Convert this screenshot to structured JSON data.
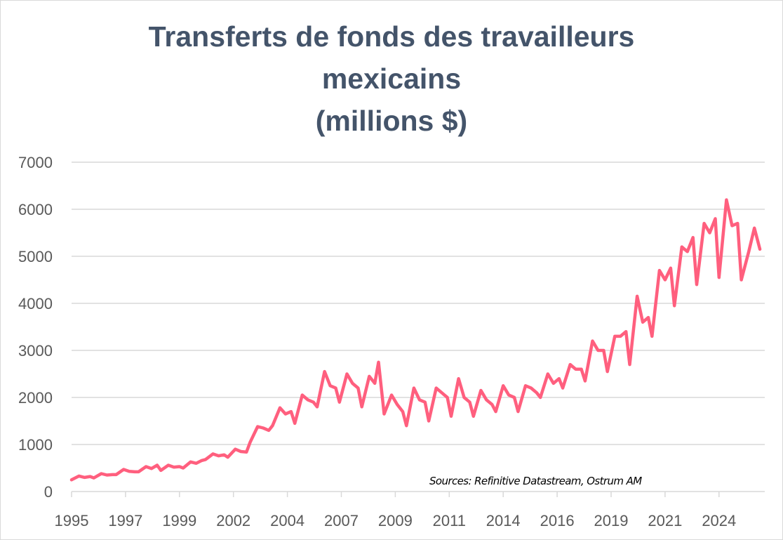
{
  "chart_data": {
    "type": "line",
    "title_lines": [
      "Transferts de fonds des travailleurs",
      "mexicains",
      "(millions $)"
    ],
    "xlabel": "",
    "ylabel": "",
    "ylim": [
      0,
      7000
    ],
    "yticks": [
      0,
      1000,
      2000,
      3000,
      4000,
      5000,
      6000,
      7000
    ],
    "xticks": [
      "1995",
      "1997",
      "1999",
      "2002",
      "2004",
      "2007",
      "2009",
      "2011",
      "2014",
      "2016",
      "2019",
      "2021",
      "2024"
    ],
    "grid": true,
    "legend": "none",
    "line_color": "#FF5F7E",
    "annotation": "Sources: Refinitive Datastream, Ostrum AM",
    "series": [
      {
        "x": [
          "1995-01",
          "1995-05",
          "1995-08",
          "1995-11",
          "1996-01",
          "1996-05",
          "1996-08",
          "1996-11",
          "1997-01",
          "1997-05",
          "1997-08",
          "1997-11",
          "1998-01",
          "1998-05",
          "1998-08",
          "1998-11",
          "1999-01",
          "1999-05",
          "1999-08",
          "1999-11",
          "2000-01",
          "2000-05",
          "2000-08",
          "2000-11",
          "2001-01",
          "2001-05",
          "2001-08",
          "2001-11",
          "2002-01",
          "2002-05",
          "2002-08",
          "2002-11",
          "2003-01",
          "2003-05",
          "2003-08",
          "2003-11",
          "2004-01",
          "2004-05",
          "2004-08",
          "2004-11",
          "2005-01",
          "2005-05",
          "2005-08",
          "2005-11",
          "2006-01",
          "2006-05",
          "2006-08",
          "2006-11",
          "2007-01",
          "2007-05",
          "2007-08",
          "2007-11",
          "2008-01",
          "2008-05",
          "2008-08",
          "2008-10",
          "2009-01",
          "2009-05",
          "2009-08",
          "2009-11",
          "2010-01",
          "2010-05",
          "2010-08",
          "2010-11",
          "2011-01",
          "2011-05",
          "2011-08",
          "2011-11",
          "2012-01",
          "2012-05",
          "2012-08",
          "2012-11",
          "2013-01",
          "2013-05",
          "2013-08",
          "2013-11",
          "2014-01",
          "2014-05",
          "2014-08",
          "2014-11",
          "2015-01",
          "2015-05",
          "2015-08",
          "2015-11",
          "2016-01",
          "2016-05",
          "2016-08",
          "2016-11",
          "2017-01",
          "2017-05",
          "2017-08",
          "2017-11",
          "2018-01",
          "2018-05",
          "2018-08",
          "2018-11",
          "2019-01",
          "2019-05",
          "2019-08",
          "2019-11",
          "2020-01",
          "2020-05",
          "2020-08",
          "2020-11",
          "2021-01",
          "2021-05",
          "2021-08",
          "2021-11",
          "2022-01",
          "2022-05",
          "2022-08",
          "2022-11",
          "2023-01",
          "2023-05",
          "2023-08",
          "2023-11",
          "2024-01",
          "2024-05",
          "2024-08",
          "2024-11",
          "2025-01",
          "2025-05",
          "2025-08",
          "2025-11"
        ],
        "values": [
          250,
          330,
          300,
          320,
          290,
          380,
          350,
          360,
          360,
          470,
          430,
          420,
          420,
          530,
          490,
          560,
          450,
          560,
          520,
          530,
          500,
          630,
          600,
          660,
          680,
          800,
          760,
          780,
          730,
          900,
          850,
          840,
          1050,
          1380,
          1350,
          1300,
          1400,
          1780,
          1650,
          1700,
          1450,
          2050,
          1950,
          1900,
          1800,
          2550,
          2250,
          2200,
          1900,
          2500,
          2300,
          2200,
          1800,
          2450,
          2300,
          2750,
          1650,
          2050,
          1850,
          1700,
          1400,
          2200,
          1950,
          1900,
          1500,
          2200,
          2100,
          2000,
          1600,
          2400,
          2000,
          1900,
          1600,
          2150,
          1950,
          1850,
          1700,
          2250,
          2050,
          2000,
          1700,
          2250,
          2200,
          2100,
          2000,
          2500,
          2300,
          2400,
          2200,
          2700,
          2600,
          2600,
          2350,
          3200,
          3000,
          3000,
          2550,
          3300,
          3300,
          3400,
          2700,
          4150,
          3600,
          3700,
          3300,
          4700,
          4500,
          4750,
          3950,
          5200,
          5100,
          5400,
          4400,
          5700,
          5500,
          5800,
          4550,
          6200,
          5650,
          5700,
          4500,
          5100,
          5600,
          5150
        ]
      }
    ]
  }
}
